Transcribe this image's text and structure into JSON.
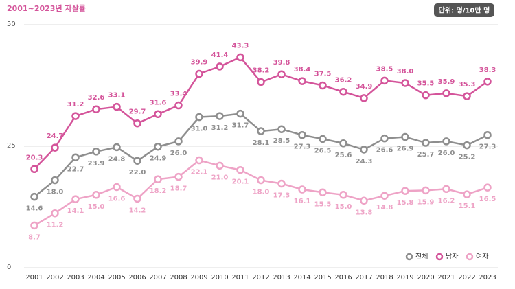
{
  "chart_data": {
    "type": "line",
    "title": "2001~2023년 자살률",
    "unit_label": "단위: 명/10만 명",
    "categories": [
      "2001",
      "2002",
      "2003",
      "2004",
      "2005",
      "2006",
      "2007",
      "2008",
      "2009",
      "2010",
      "2011",
      "2012",
      "2013",
      "2014",
      "2015",
      "2016",
      "2017",
      "2018",
      "2019",
      "2020",
      "2021",
      "2022",
      "2023"
    ],
    "ylim": [
      0,
      50
    ],
    "yticks": [
      0,
      25,
      50
    ],
    "grid": true,
    "legend": "lower right",
    "series": [
      {
        "name": "전체",
        "color": "#8e8e8e",
        "label_position": "below",
        "values": [
          14.6,
          18.0,
          22.7,
          23.9,
          24.8,
          22.0,
          24.9,
          26.0,
          31.0,
          31.2,
          31.7,
          28.1,
          28.5,
          27.3,
          26.5,
          25.6,
          24.3,
          26.6,
          26.9,
          25.7,
          26.0,
          25.2,
          27.3
        ],
        "value_labels": [
          "14.6",
          "18.0",
          "22.7",
          "23.9",
          "24.8",
          "22.0",
          "24.9",
          "26.0",
          "31.0",
          "31.2",
          "31.7",
          "28.1",
          "28.5",
          "27.3",
          "26.5",
          "25.6",
          "24.3",
          "26.6",
          "26.9",
          "25.7",
          "26.0",
          "25.2",
          "27.3"
        ]
      },
      {
        "name": "남자",
        "color": "#d4549a",
        "label_position": "above",
        "values": [
          20.3,
          24.7,
          31.2,
          32.6,
          33.1,
          29.7,
          31.6,
          33.4,
          39.9,
          41.4,
          43.3,
          38.2,
          39.8,
          38.4,
          37.5,
          36.2,
          34.9,
          38.5,
          38.0,
          35.5,
          35.9,
          35.3,
          38.3
        ],
        "value_labels": [
          "20.3",
          "24.7",
          "31.2",
          "32.6",
          "33.1",
          "29.7",
          "31.6",
          "33.4",
          "39.9",
          "41.4",
          "43.3",
          "38.2",
          "39.8",
          "38.4",
          "37.5",
          "36.2",
          "34.9",
          "38.5",
          "38.0",
          "35.5",
          "35.9",
          "35.3",
          "38.3"
        ]
      },
      {
        "name": "여자",
        "color": "#eea3c6",
        "label_position": "below",
        "values": [
          8.7,
          11.2,
          14.1,
          15.0,
          16.6,
          14.2,
          18.2,
          18.7,
          22.1,
          21.0,
          20.1,
          18.0,
          17.3,
          16.1,
          15.5,
          15.0,
          13.8,
          14.8,
          15.8,
          15.9,
          16.2,
          15.1,
          16.5
        ],
        "value_labels": [
          "8.7",
          "11.2",
          "14.1",
          "15.0",
          "16.6",
          "14.2",
          "18.2",
          "18.7",
          "22.1",
          "21.0",
          "20.1",
          "18.0",
          "17.3",
          "16.1",
          "15.5",
          "15.0",
          "13.8",
          "14.8",
          "15.8",
          "15.9",
          "16.2",
          "15.1",
          "16.5"
        ]
      }
    ]
  }
}
